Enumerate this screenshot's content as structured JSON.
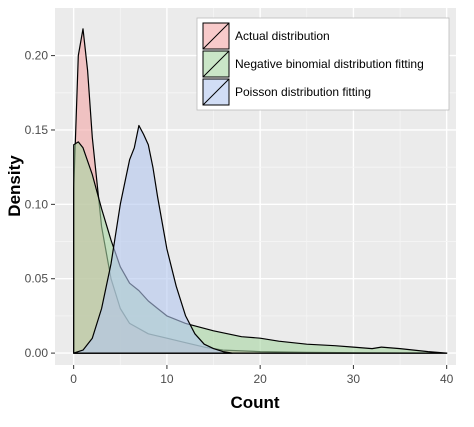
{
  "chart_data": {
    "type": "area",
    "xlabel": "Count",
    "ylabel": "Density",
    "xlim": [
      -2,
      41
    ],
    "ylim": [
      -0.008,
      0.232
    ],
    "x_ticks": [
      0,
      10,
      20,
      30,
      40
    ],
    "y_ticks": [
      0.0,
      0.05,
      0.1,
      0.15,
      0.2
    ],
    "x_tick_labels": [
      "0",
      "10",
      "20",
      "30",
      "40"
    ],
    "y_tick_labels": [
      "0.00",
      "0.05",
      "0.10",
      "0.15",
      "0.20"
    ],
    "grid": true,
    "legend_position": "top-right",
    "series": [
      {
        "name": "Actual distribution",
        "color": "#f4a6a6",
        "points": [
          [
            0,
            0.11
          ],
          [
            0.5,
            0.2
          ],
          [
            1,
            0.218
          ],
          [
            1.5,
            0.19
          ],
          [
            2,
            0.145
          ],
          [
            3,
            0.085
          ],
          [
            4,
            0.05
          ],
          [
            5,
            0.03
          ],
          [
            6,
            0.02
          ],
          [
            8,
            0.013
          ],
          [
            10,
            0.01
          ],
          [
            12,
            0.007
          ],
          [
            14,
            0.004
          ],
          [
            16,
            0.002
          ],
          [
            20,
            0.001
          ],
          [
            25,
            0.0005
          ],
          [
            30,
            0.0003
          ],
          [
            40,
            0
          ]
        ]
      },
      {
        "name": "Negative binomial distribution fitting",
        "color": "#a6d5a2",
        "points": [
          [
            0,
            0.14
          ],
          [
            0.5,
            0.142
          ],
          [
            1,
            0.138
          ],
          [
            2,
            0.12
          ],
          [
            3,
            0.097
          ],
          [
            4,
            0.076
          ],
          [
            5,
            0.058
          ],
          [
            6,
            0.047
          ],
          [
            7,
            0.042
          ],
          [
            8,
            0.035
          ],
          [
            9,
            0.03
          ],
          [
            10,
            0.025
          ],
          [
            12,
            0.02
          ],
          [
            15,
            0.015
          ],
          [
            18,
            0.011
          ],
          [
            20,
            0.01
          ],
          [
            22,
            0.008
          ],
          [
            25,
            0.006
          ],
          [
            28,
            0.005
          ],
          [
            30,
            0.004
          ],
          [
            32,
            0.003
          ],
          [
            33,
            0.004
          ],
          [
            35,
            0.003
          ],
          [
            38,
            0.001
          ],
          [
            40,
            0
          ]
        ]
      },
      {
        "name": "Poisson distribution fitting",
        "color": "#b3c6ef",
        "points": [
          [
            0,
            0
          ],
          [
            1,
            0.002
          ],
          [
            2,
            0.01
          ],
          [
            3,
            0.03
          ],
          [
            4,
            0.06
          ],
          [
            5,
            0.1
          ],
          [
            6,
            0.13
          ],
          [
            6.5,
            0.138
          ],
          [
            7,
            0.153
          ],
          [
            7.5,
            0.147
          ],
          [
            8,
            0.14
          ],
          [
            8.5,
            0.125
          ],
          [
            9,
            0.105
          ],
          [
            10,
            0.07
          ],
          [
            11,
            0.045
          ],
          [
            12,
            0.025
          ],
          [
            13,
            0.013
          ],
          [
            14,
            0.006
          ],
          [
            15,
            0.003
          ],
          [
            16,
            0.001
          ],
          [
            17,
            0
          ]
        ]
      }
    ]
  }
}
